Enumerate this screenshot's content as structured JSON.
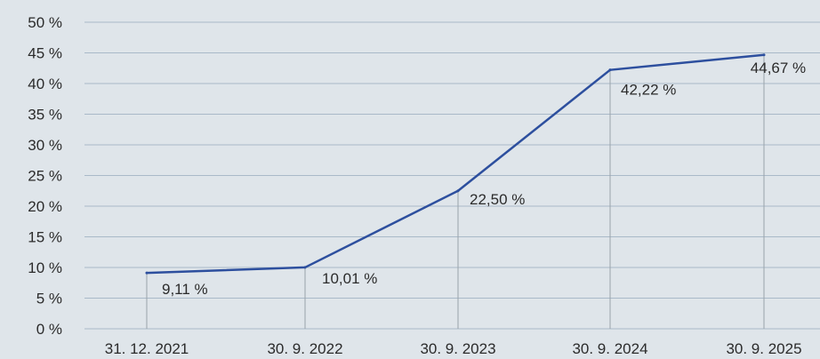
{
  "chart_data": {
    "type": "line",
    "x": [
      "31. 12. 2021",
      "30. 9. 2022",
      "30. 9. 2023",
      "30. 9. 2024",
      "30. 9. 2025"
    ],
    "series": [
      {
        "values": [
          9.11,
          10.01,
          22.5,
          42.22,
          44.67
        ],
        "data_labels": [
          "9,11 %",
          "10,01 %",
          "22,50 %",
          "42,22 %",
          "44,67 %"
        ]
      }
    ],
    "y_ticks": [
      0,
      5,
      10,
      15,
      20,
      25,
      30,
      35,
      40,
      45,
      50
    ],
    "y_tick_labels": [
      "0 %",
      "5 %",
      "10 %",
      "15 %",
      "20 %",
      "25 %",
      "30 %",
      "35 %",
      "40 %",
      "45 %",
      "50 %"
    ],
    "ylim": [
      0,
      50
    ],
    "grid": true,
    "legend": "none",
    "colors": {
      "background": "#dfe5ea",
      "line": "#2d4f9e",
      "grid": "#a9b9c8",
      "drop_line": "#9aa3ab",
      "text": "#2b2b2b"
    }
  }
}
